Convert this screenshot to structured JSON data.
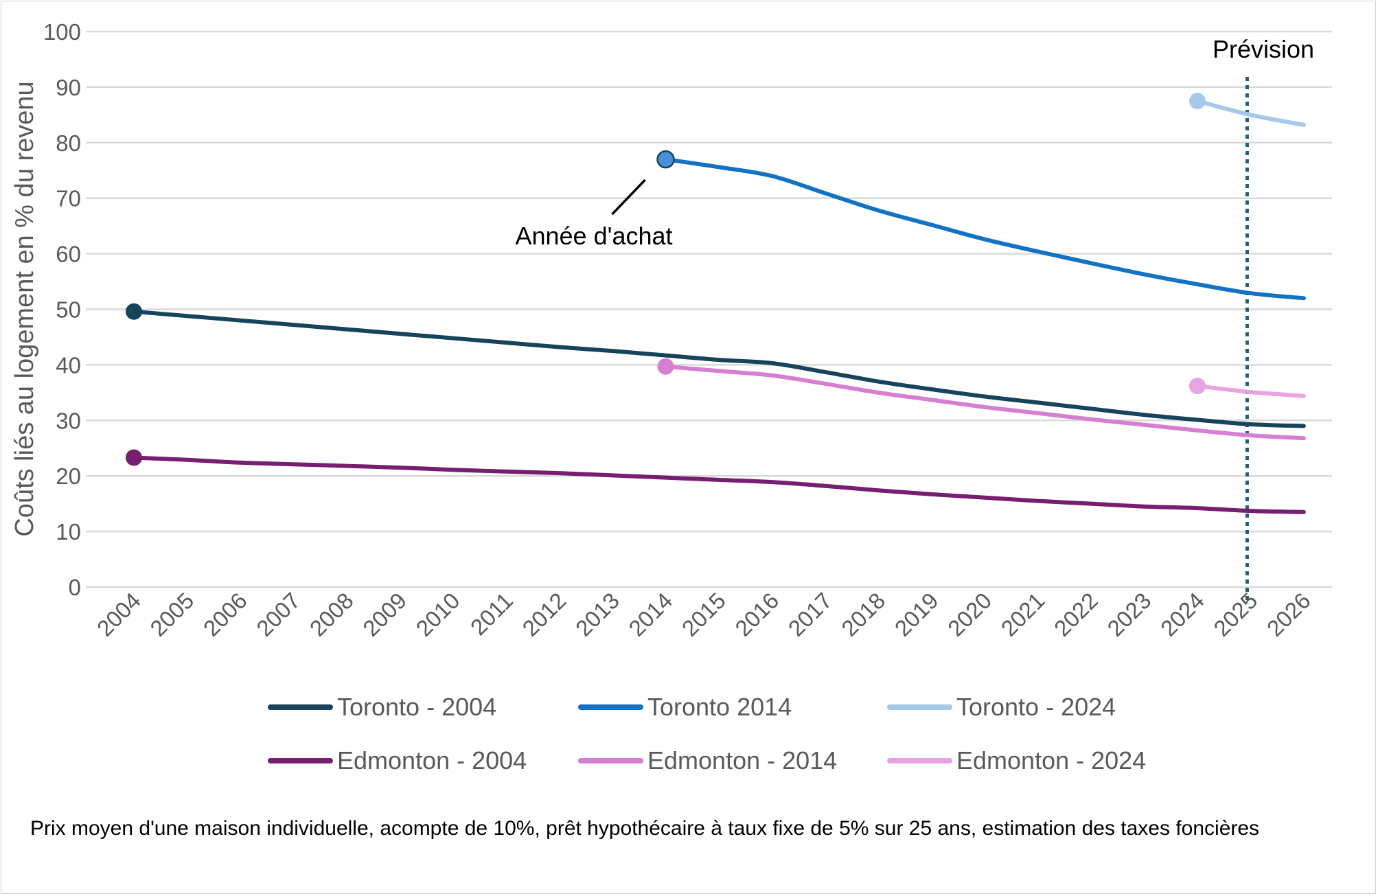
{
  "chart_data": {
    "type": "line",
    "title": "",
    "xlabel": "",
    "ylabel": "Coûts liés au logement en % du revenu",
    "ylim": [
      0,
      100
    ],
    "yticks": [
      "0",
      "10",
      "20",
      "30",
      "40",
      "50",
      "60",
      "70",
      "80",
      "90",
      "100"
    ],
    "grid": true,
    "categories": [
      "2004",
      "2005",
      "2006",
      "2007",
      "2008",
      "2009",
      "2010",
      "2011",
      "2012",
      "2013",
      "2014",
      "2015",
      "2016",
      "2017",
      "2018",
      "2019",
      "2020",
      "2021",
      "2022",
      "2023",
      "2024",
      "2025",
      "2026"
    ],
    "series": [
      {
        "name": "Toronto - 2004",
        "color": "#17435c",
        "values": [
          49.6,
          48.8,
          48.0,
          47.2,
          46.4,
          45.6,
          44.8,
          44.0,
          43.2,
          42.5,
          41.7,
          40.9,
          40.3,
          38.7,
          37.0,
          35.6,
          34.3,
          33.2,
          32.1,
          31.0,
          30.1,
          29.3,
          29.0
        ]
      },
      {
        "name": "Toronto 2014",
        "color": "#1372c4",
        "values": [
          null,
          null,
          null,
          null,
          null,
          null,
          null,
          null,
          null,
          null,
          77.0,
          75.6,
          74.0,
          70.9,
          67.8,
          65.2,
          62.6,
          60.4,
          58.3,
          56.3,
          54.5,
          52.9,
          52.0
        ]
      },
      {
        "name": "Toronto - 2024",
        "color": "#a6c8ea",
        "values": [
          null,
          null,
          null,
          null,
          null,
          null,
          null,
          null,
          null,
          null,
          null,
          null,
          null,
          null,
          null,
          null,
          null,
          null,
          null,
          null,
          87.5,
          85.0,
          83.2
        ]
      },
      {
        "name": "Edmonton - 2004",
        "color": "#761e6f",
        "values": [
          23.3,
          22.9,
          22.4,
          22.1,
          21.8,
          21.5,
          21.1,
          20.8,
          20.5,
          20.1,
          19.7,
          19.3,
          18.9,
          18.2,
          17.4,
          16.7,
          16.1,
          15.5,
          15.0,
          14.5,
          14.2,
          13.7,
          13.5
        ]
      },
      {
        "name": "Edmonton - 2014",
        "color": "#d67fd1",
        "values": [
          null,
          null,
          null,
          null,
          null,
          null,
          null,
          null,
          null,
          null,
          39.7,
          38.9,
          38.1,
          36.6,
          35.0,
          33.7,
          32.4,
          31.3,
          30.2,
          29.2,
          28.2,
          27.3,
          26.8
        ]
      },
      {
        "name": "Edmonton - 2024",
        "color": "#e8a3e2",
        "values": [
          null,
          null,
          null,
          null,
          null,
          null,
          null,
          null,
          null,
          null,
          null,
          null,
          null,
          null,
          null,
          null,
          null,
          null,
          null,
          null,
          36.2,
          35.1,
          34.4
        ]
      }
    ],
    "purchase_markers": [
      {
        "series": "Toronto - 2004",
        "x": "2004",
        "y": 49.6
      },
      {
        "series": "Edmonton - 2004",
        "x": "2004",
        "y": 23.3
      },
      {
        "series": "Toronto 2014",
        "x": "2014",
        "y": 77.0
      },
      {
        "series": "Edmonton - 2014",
        "x": "2014",
        "y": 39.7
      },
      {
        "series": "Toronto - 2024",
        "x": "2024",
        "y": 87.5
      },
      {
        "series": "Edmonton - 2024",
        "x": "2024",
        "y": 36.2
      }
    ],
    "forecast_line": {
      "x": "2025",
      "label": "Prévision",
      "color": "#1f5f7a"
    },
    "annotation": {
      "text": "Année d'achat",
      "points_to": {
        "x": "2014",
        "y": 77.0
      }
    },
    "legend_position": "bottom",
    "note": "Prix moyen d'une maison individuelle, acompte de 10%, prêt hypothécaire à taux fixe de 5% sur 25 ans, estimation des taxes foncières"
  }
}
